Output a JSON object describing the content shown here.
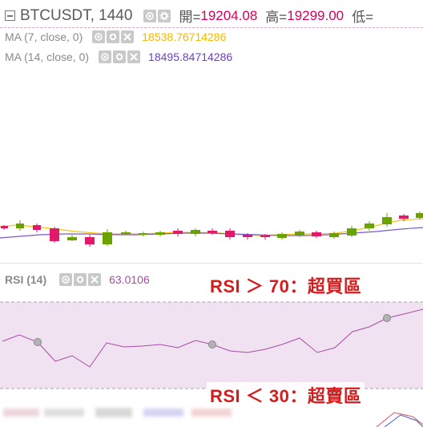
{
  "header": {
    "symbol": "BTCUSDT, 1440",
    "open_label": "開=",
    "open_value": "19204.08",
    "high_label": "高=",
    "high_value": "19299.00",
    "low_label": "低="
  },
  "ma7": {
    "label": "MA (7, close, 0)",
    "value": "18538.76714286",
    "color": "#f5b800"
  },
  "ma14": {
    "label": "MA (14, close, 0)",
    "value": "18495.84714286",
    "color": "#6b3fc8"
  },
  "rsi": {
    "label": "RSI (14)",
    "value": "63.0106",
    "color": "#a64ca6",
    "overbought_callout": "RSI ＞ 70：超買區",
    "oversold_callout": "RSI ＜ 30：超賣區"
  },
  "colors": {
    "up": "#6aa300",
    "down": "#e0196a",
    "band": "#f1e2f1"
  }
}
